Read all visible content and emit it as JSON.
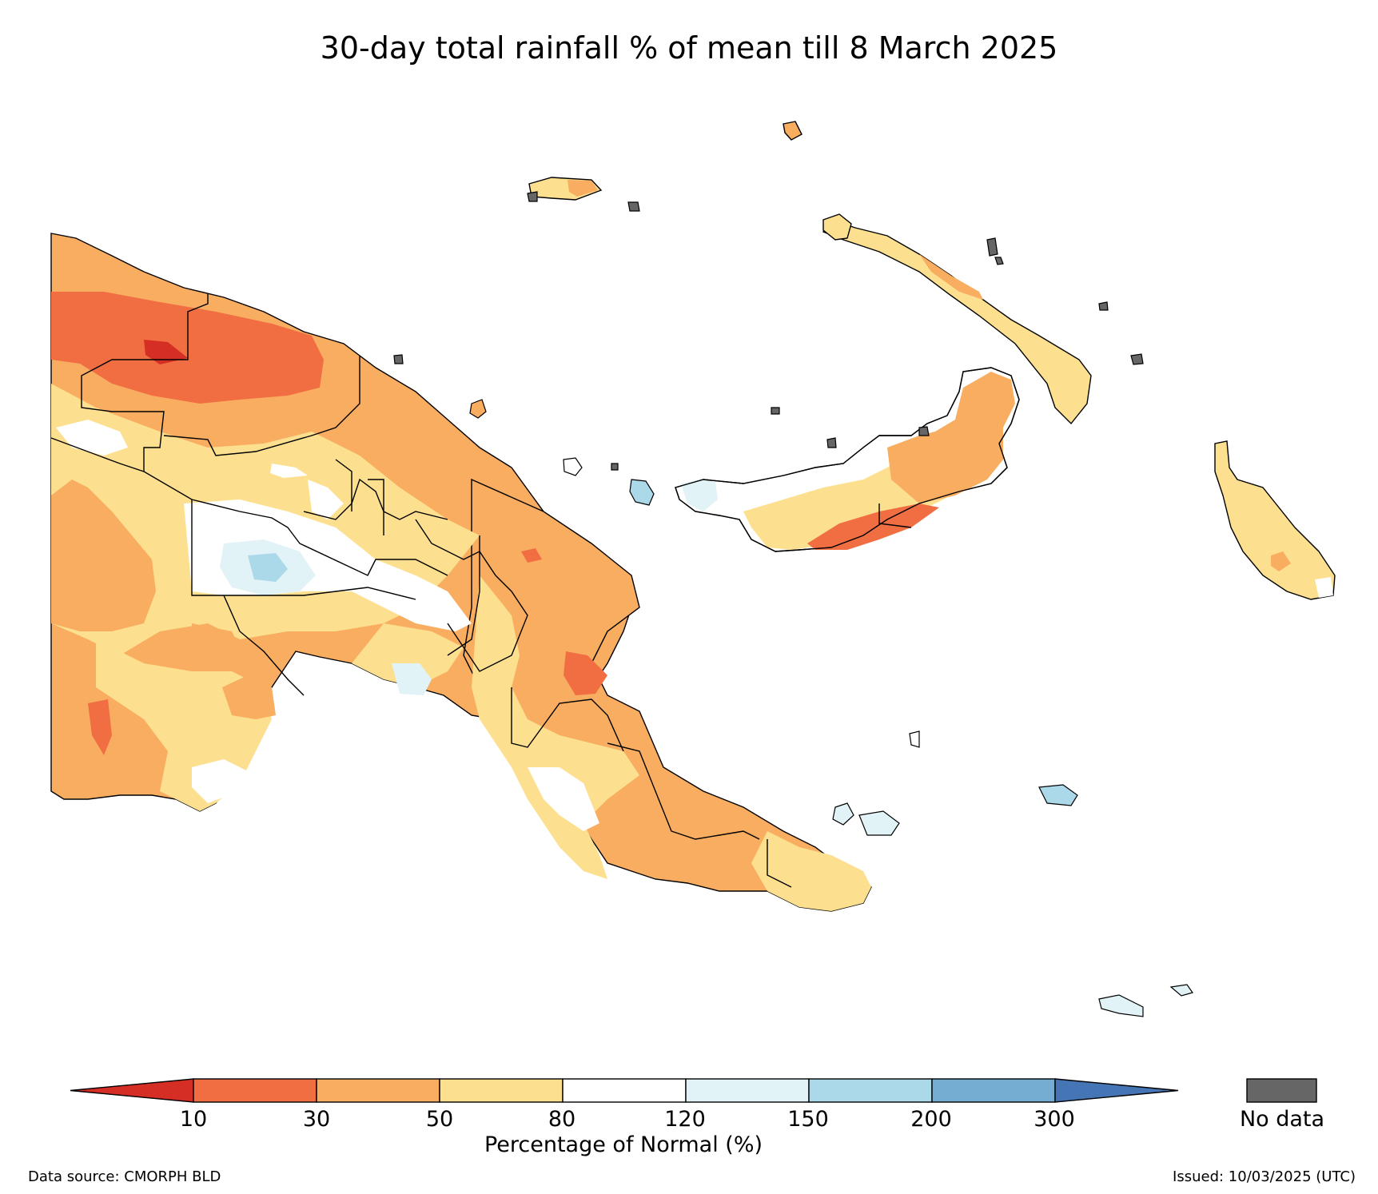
{
  "title": "30-day total rainfall % of mean till 8 March 2025",
  "colors": {
    "lt10": "#d42e25",
    "c10_30": "#f16e43",
    "c30_50": "#f8ad61",
    "c50_80": "#fde08f",
    "c80_120": "#ffffff",
    "c120_150": "#e1f3f7",
    "c150_200": "#abd9e9",
    "c200_300": "#74add1",
    "gt300": "#4575b4",
    "no_data": "#666666",
    "outline": "#000000"
  },
  "legend": {
    "ticks": [
      "10",
      "30",
      "50",
      "80",
      "120",
      "150",
      "200",
      "300"
    ],
    "label": "Percentage of Normal (%)",
    "no_data_label": "No data"
  },
  "footer": {
    "source": "Data source: CMORPH BLD",
    "issued": "Issued: 10/03/2025 (UTC)"
  }
}
